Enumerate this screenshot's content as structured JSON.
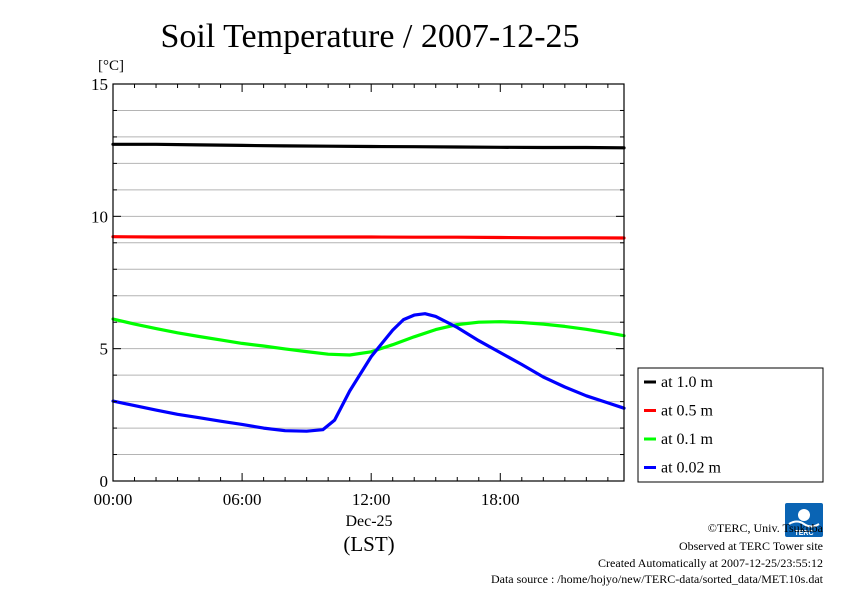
{
  "title": "Soil Temperature / 2007-12-25",
  "colors": {
    "background": "#ffffff",
    "grid": "#b4b4b4",
    "axis": "#000000",
    "logo": "#0a64b4"
  },
  "chart_data": {
    "type": "line",
    "title": "Soil Temperature / 2007-12-25",
    "ylabel_unit": "[°C]",
    "ylim": [
      0,
      15
    ],
    "xlim": [
      0,
      23.75
    ],
    "yticks": [
      "0",
      "5",
      "10",
      "15"
    ],
    "xticks": [
      "00:00",
      "06:00",
      "12:00",
      "18:00"
    ],
    "xlabel_date": "Dec-25",
    "xlabel_tz": "(LST)",
    "grid": true,
    "legend_position": "right",
    "series": [
      {
        "name": "at 1.0 m",
        "color": "#000000",
        "x": [
          0,
          2,
          4,
          6,
          8,
          10,
          12,
          14,
          16,
          18,
          20,
          22,
          23.75
        ],
        "values": [
          12.72,
          12.72,
          12.7,
          12.68,
          12.66,
          12.65,
          12.64,
          12.63,
          12.62,
          12.61,
          12.6,
          12.6,
          12.59
        ]
      },
      {
        "name": "at 0.5 m",
        "color": "#ff0000",
        "x": [
          0,
          2,
          4,
          6,
          8,
          10,
          12,
          14,
          16,
          18,
          20,
          22,
          23.75
        ],
        "values": [
          9.23,
          9.22,
          9.22,
          9.22,
          9.22,
          9.22,
          9.22,
          9.21,
          9.21,
          9.2,
          9.19,
          9.19,
          9.18
        ]
      },
      {
        "name": "at 0.1 m",
        "color": "#00ff00",
        "x": [
          0,
          1,
          2,
          3,
          4,
          5,
          6,
          7,
          8,
          9,
          10,
          11,
          12,
          13,
          14,
          15,
          16,
          17,
          18,
          19,
          20,
          21,
          22,
          23,
          23.75
        ],
        "values": [
          6.12,
          5.93,
          5.76,
          5.6,
          5.46,
          5.33,
          5.2,
          5.1,
          4.99,
          4.89,
          4.79,
          4.76,
          4.88,
          5.15,
          5.45,
          5.72,
          5.91,
          6.0,
          6.02,
          5.99,
          5.93,
          5.84,
          5.73,
          5.6,
          5.49
        ]
      },
      {
        "name": "at 0.02 m",
        "color": "#0000ff",
        "x": [
          0,
          1,
          2,
          3,
          4,
          5,
          6,
          7,
          8,
          9,
          9.75,
          10.3,
          11,
          12,
          13,
          13.5,
          14,
          14.5,
          15,
          16,
          17,
          18,
          19,
          20,
          21,
          22,
          23,
          23.75
        ],
        "values": [
          3.02,
          2.85,
          2.68,
          2.52,
          2.39,
          2.26,
          2.14,
          2.0,
          1.9,
          1.88,
          1.94,
          2.3,
          3.4,
          4.7,
          5.7,
          6.1,
          6.27,
          6.32,
          6.22,
          5.8,
          5.3,
          4.85,
          4.4,
          3.93,
          3.55,
          3.22,
          2.95,
          2.75
        ]
      }
    ]
  },
  "footer": {
    "copyright": "©TERC, Univ. Tsukuba",
    "site": "Observed at TERC Tower site",
    "created": "Created Automatically at 2007-12-25/23:55:12",
    "source": "Data source : /home/hojyo/new/TERC-data/sorted_data/MET.10s.dat",
    "logo_text": "TERC"
  }
}
